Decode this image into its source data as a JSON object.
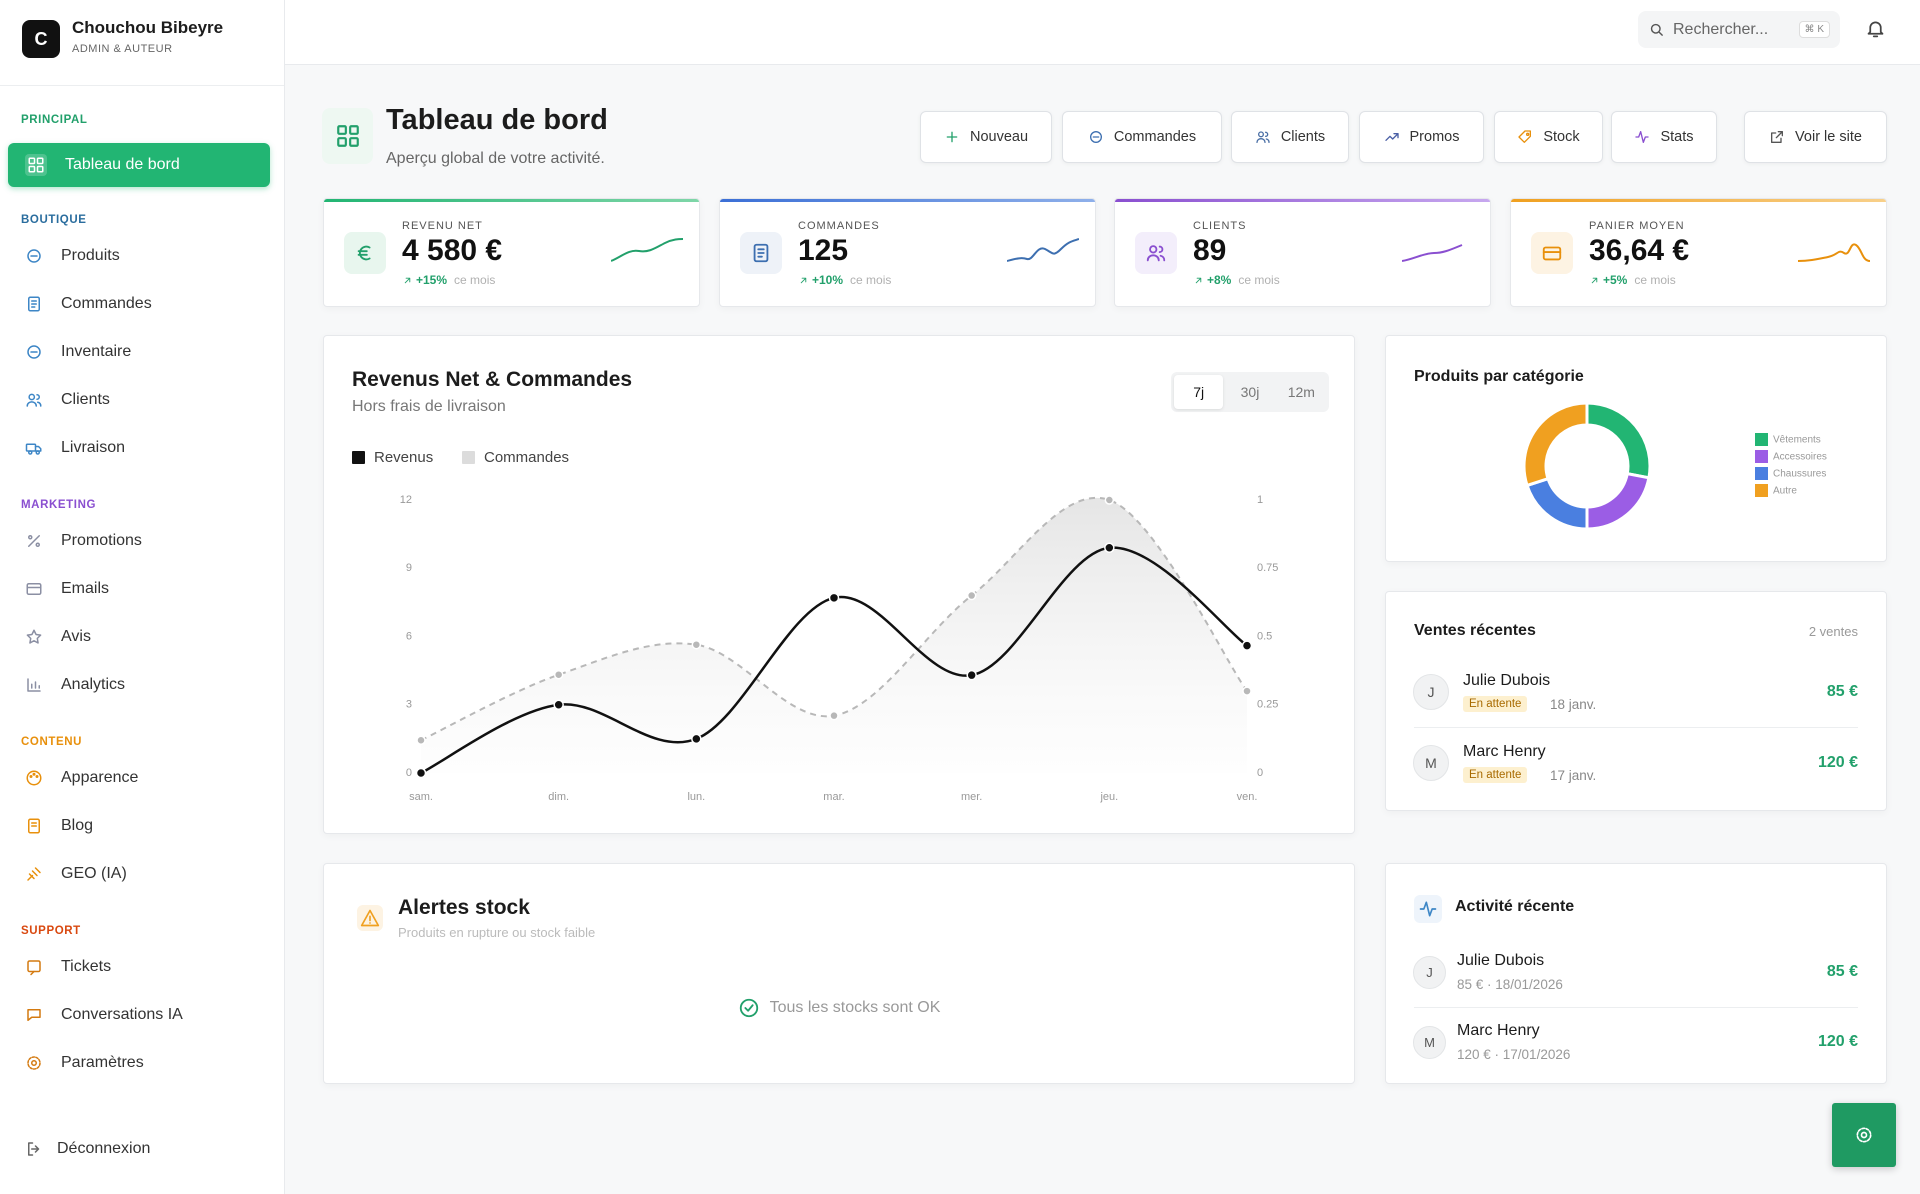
{
  "sidebar": {
    "brand": {
      "initial": "C",
      "name": "Chouchou Bibeyre",
      "role": "ADMIN & AUTEUR"
    },
    "sections": [
      {
        "label": "PRINCIPAL",
        "items": [
          "Tableau de bord"
        ]
      },
      {
        "label": "BOUTIQUE",
        "items": [
          "Produits",
          "Commandes",
          "Inventaire",
          "Clients",
          "Livraison"
        ]
      },
      {
        "label": "MARKETING",
        "items": [
          "Promotions",
          "Emails",
          "Avis",
          "Analytics"
        ]
      },
      {
        "label": "CONTENU",
        "items": [
          "Apparence",
          "Blog",
          "GEO (IA)"
        ]
      },
      {
        "label": "SUPPORT",
        "items": [
          "Tickets",
          "Conversations IA",
          "Paramètres"
        ]
      }
    ],
    "logout": "Déconnexion"
  },
  "topbar": {
    "search": "Rechercher...",
    "shortcut": "⌘ K"
  },
  "header": {
    "title": "Tableau de bord",
    "subtitle": "Aperçu global de votre activité.",
    "actions": [
      "Nouveau",
      "Commandes",
      "Clients",
      "Promos",
      "Stock",
      "Stats",
      "Voir le site"
    ]
  },
  "kpis": [
    {
      "label": "REVENU NET",
      "value": "4 580 €",
      "delta": "+15%",
      "period": "ce mois"
    },
    {
      "label": "COMMANDES",
      "value": "125",
      "delta": "+10%",
      "period": "ce mois"
    },
    {
      "label": "CLIENTS",
      "value": "89",
      "delta": "+8%",
      "period": "ce mois"
    },
    {
      "label": "PANIER MOYEN",
      "value": "36,64 €",
      "delta": "+5%",
      "period": "ce mois"
    }
  ],
  "chart_data": [
    {
      "type": "line",
      "title": "Revenus Net & Commandes",
      "subtitle": "Hors frais de livraison",
      "ranges": [
        "7j",
        "30j",
        "12m"
      ],
      "categories": [
        "sam.",
        "dim.",
        "lun.",
        "mar.",
        "mer.",
        "jeu.",
        "ven."
      ],
      "series": [
        {
          "name": "Revenus",
          "color": "#111111",
          "values": [
            0,
            3,
            1.5,
            7.7,
            4.3,
            9.9,
            5.6
          ]
        },
        {
          "name": "Commandes",
          "color": "#b8b8b8",
          "values": [
            0.12,
            0.36,
            0.47,
            0.21,
            0.65,
            1,
            0.3
          ],
          "axis": "y2"
        }
      ],
      "ylim": [
        0,
        12
      ],
      "yticks": [
        0,
        3,
        6,
        9,
        12
      ],
      "y2lim": [
        0,
        1
      ],
      "y2ticks": [
        0,
        0.25,
        0.5,
        0.75,
        1
      ]
    },
    {
      "type": "pie",
      "title": "Produits par catégorie",
      "categories": [
        "Vêtements",
        "Accessoires",
        "Chaussures",
        "Autre"
      ],
      "values": [
        28,
        22,
        20,
        30
      ],
      "colors": [
        "#22b573",
        "#9b5de5",
        "#4a7fe0",
        "#f0a020"
      ]
    }
  ],
  "recent_sales": {
    "title": "Ventes récentes",
    "count": "2 ventes",
    "items": [
      {
        "initial": "J",
        "name": "Julie Dubois",
        "status": "En attente",
        "date": "18 janv.",
        "amount": "85 €"
      },
      {
        "initial": "M",
        "name": "Marc Henry",
        "status": "En attente",
        "date": "17 janv.",
        "amount": "120 €"
      }
    ]
  },
  "stock_alerts": {
    "title": "Alertes stock",
    "subtitle": "Produits en rupture ou stock faible",
    "empty": "Tous les stocks sont OK"
  },
  "activity": {
    "title": "Activité récente",
    "items": [
      {
        "initial": "J",
        "name": "Julie Dubois",
        "detail": "85 € · 18/01/2026",
        "amount": "85 €"
      },
      {
        "initial": "M",
        "name": "Marc Henry",
        "detail": "120 € · 17/01/2026",
        "amount": "120 €"
      }
    ]
  }
}
